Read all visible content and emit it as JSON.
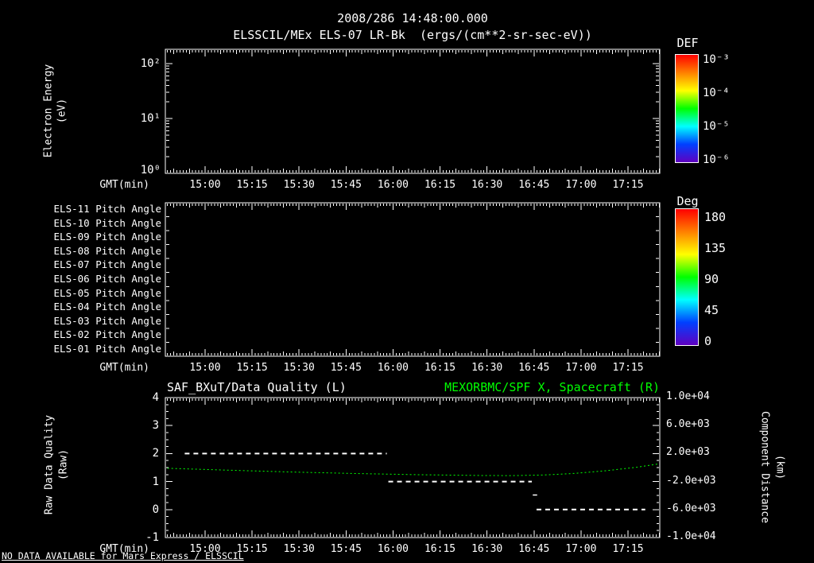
{
  "colors": {
    "background": "#000000",
    "foreground": "#ffffff",
    "green": "#00ff00",
    "colormap_top_to_bottom": [
      "#ff0000",
      "#ff8000",
      "#ffff00",
      "#00ff00",
      "#00ffff",
      "#0040ff",
      "#6000c0"
    ]
  },
  "header": {
    "title": "2008/286 14:48:00.000",
    "subtitle": "ELSSCIL/MEx ELS-07 LR-Bk  (ergs/(cm**2-sr-sec-eV))"
  },
  "time_axis": {
    "label": "GMT(min)",
    "start_time": "14:48",
    "span_minutes": 158,
    "ticks": [
      "15:00",
      "15:15",
      "15:30",
      "15:45",
      "16:00",
      "16:15",
      "16:30",
      "16:45",
      "17:00",
      "17:15"
    ],
    "tick_minutes": [
      12,
      27,
      42,
      57,
      72,
      87,
      102,
      117,
      132,
      147
    ]
  },
  "spectrogram": {
    "ylabel_line1": "Electron Energy",
    "ylabel_line2": "(eV)",
    "yticks": [
      "10²",
      "10¹",
      "10⁰"
    ],
    "colorbar_title": "DEF",
    "colorbar_ticks": [
      "10⁻³",
      "10⁻⁴",
      "10⁻⁵",
      "10⁻⁶"
    ]
  },
  "pitch": {
    "row_labels": [
      "ELS-11 Pitch Angle",
      "ELS-10 Pitch Angle",
      "ELS-09 Pitch Angle",
      "ELS-08 Pitch Angle",
      "ELS-07 Pitch Angle",
      "ELS-06 Pitch Angle",
      "ELS-05 Pitch Angle",
      "ELS-04 Pitch Angle",
      "ELS-03 Pitch Angle",
      "ELS-02 Pitch Angle",
      "ELS-01 Pitch Angle"
    ],
    "colorbar_title": "Deg",
    "colorbar_ticks": [
      "180",
      "135",
      "90",
      "45",
      "0"
    ]
  },
  "quality": {
    "title_left": "SAF_BXuT/Data Quality (L)",
    "title_right": "MEXORBMC/SPF X, Spacecraft (R)",
    "ylabel_left_line1": "Raw Data Quality",
    "ylabel_left_line2": "(Raw)",
    "ylabel_right_line1": "Component Distance",
    "ylabel_right_line2": "(km)",
    "left_ticks": [
      "4",
      "3",
      "2",
      "1",
      "0",
      "-1"
    ],
    "right_ticks": [
      "1.0e+04",
      "6.0e+03",
      "2.0e+03",
      "-2.0e+03",
      "-6.0e+03",
      "-1.0e+04"
    ]
  },
  "footer": {
    "message": "NO DATA AVAILABLE for Mars Express / ELSSCIL"
  },
  "chart_data": [
    {
      "type": "heatmap",
      "title": "ELSSCIL/MEx ELS-07 LR-Bk (ergs/(cm**2-sr-sec-eV))",
      "xlabel": "GMT(min)",
      "ylabel": "Electron Energy (eV)",
      "x_ticks": [
        "15:00",
        "15:15",
        "15:30",
        "15:45",
        "16:00",
        "16:15",
        "16:30",
        "16:45",
        "17:00",
        "17:15"
      ],
      "y_scale": "log",
      "y_ticks": [
        1,
        10,
        100
      ],
      "colorbar": {
        "label": "DEF",
        "units": "ergs/(cm**2-sr-sec-eV)",
        "ticks": [
          0.001,
          0.0001,
          1e-05,
          1e-06
        ]
      },
      "values": [],
      "note": "NO DATA AVAILABLE for Mars Express / ELSSCIL"
    },
    {
      "type": "heatmap",
      "title": "ELS Pitch Angles",
      "xlabel": "GMT(min)",
      "rows": [
        "ELS-11 Pitch Angle",
        "ELS-10 Pitch Angle",
        "ELS-09 Pitch Angle",
        "ELS-08 Pitch Angle",
        "ELS-07 Pitch Angle",
        "ELS-06 Pitch Angle",
        "ELS-05 Pitch Angle",
        "ELS-04 Pitch Angle",
        "ELS-03 Pitch Angle",
        "ELS-02 Pitch Angle",
        "ELS-01 Pitch Angle"
      ],
      "x_ticks": [
        "15:00",
        "15:15",
        "15:30",
        "15:45",
        "16:00",
        "16:15",
        "16:30",
        "16:45",
        "17:00",
        "17:15"
      ],
      "colorbar": {
        "label": "Deg",
        "ticks": [
          180,
          135,
          90,
          45,
          0
        ]
      },
      "values": [],
      "note": "NO DATA AVAILABLE for Mars Express / ELSSCIL"
    },
    {
      "type": "line",
      "xlabel": "GMT(min)",
      "x_ticks": [
        "15:00",
        "15:15",
        "15:30",
        "15:45",
        "16:00",
        "16:15",
        "16:30",
        "16:45",
        "17:00",
        "17:15"
      ],
      "ylim_left": [
        -1,
        4
      ],
      "ylim_right": [
        -10000,
        10000
      ],
      "ylabel_left": "Raw Data Quality (Raw)",
      "ylabel_right": "Component Distance (km)",
      "series": [
        {
          "name": "SAF_BXuT/Data Quality (L)",
          "axis": "left",
          "color": "#ffffff",
          "line_style": "dashed",
          "line_width": 2,
          "segments": [
            {
              "value": 2,
              "start": "14:54",
              "end": "15:58",
              "t0_min": 5.5,
              "t1_min": 70.0
            },
            {
              "value": 1,
              "start": "15:58",
              "end": "16:44",
              "t0_min": 70.5,
              "t1_min": 116.3
            },
            {
              "value": 0,
              "start": "16:46",
              "end": "17:21",
              "t0_min": 117.8,
              "t1_min": 152.5
            }
          ],
          "step_marks": [
            {
              "value": 0.52,
              "t0_min": 116.6,
              "t1_min": 118.0
            }
          ]
        },
        {
          "name": "MEXORBMC/SPF X, Spacecraft (R)",
          "axis": "right",
          "color": "#00ff00",
          "line_style": "dashed",
          "line_width": 1,
          "points_min_km": [
            [
              0,
              -100
            ],
            [
              20,
              -380
            ],
            [
              40,
              -640
            ],
            [
              60,
              -850
            ],
            [
              80,
              -1020
            ],
            [
              100,
              -1130
            ],
            [
              110,
              -1150
            ],
            [
              120,
              -1060
            ],
            [
              130,
              -830
            ],
            [
              140,
              -450
            ],
            [
              150,
              60
            ],
            [
              157,
              540
            ]
          ]
        }
      ]
    }
  ]
}
